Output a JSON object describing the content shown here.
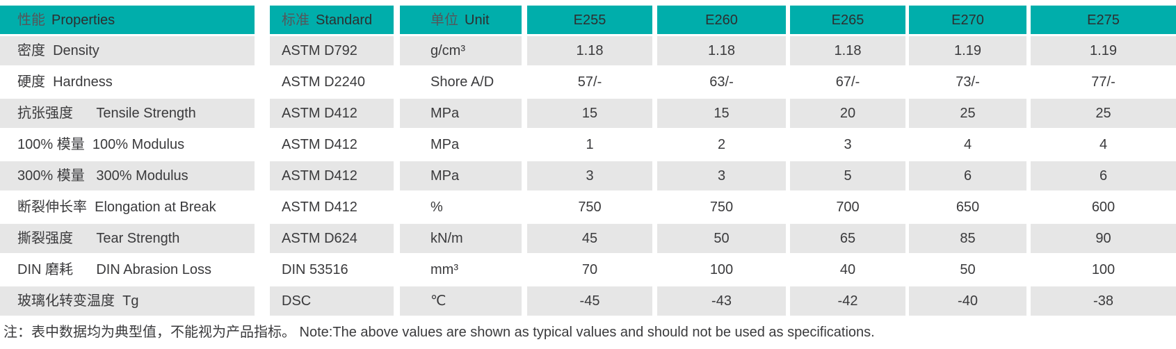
{
  "colors": {
    "header_teal": "#00aeab",
    "row_shade": "#e6e6e6",
    "body_text": "#3a3a3c",
    "header_text_zh": "#54565a",
    "header_text_en": "#2d2f30"
  },
  "table": {
    "header": {
      "properties_zh": "性能",
      "properties_en": "Properties",
      "standard_zh": "标准",
      "standard_en": "Standard",
      "unit_zh": "单位",
      "unit_en": "Unit",
      "grades": [
        "E255",
        "E260",
        "E265",
        "E270",
        "E275"
      ]
    },
    "rows": [
      {
        "property": "密度  Density",
        "standard": "ASTM D792",
        "unit": "g/cm³",
        "values": [
          "1.18",
          "1.18",
          "1.18",
          "1.19",
          "1.19"
        ]
      },
      {
        "property": "硬度  Hardness",
        "standard": "ASTM D2240",
        "unit": "Shore A/D",
        "values": [
          "57/-",
          "63/-",
          "67/-",
          "73/-",
          "77/-"
        ]
      },
      {
        "property": "抗张强度      Tensile Strength",
        "standard": "ASTM D412",
        "unit": "MPa",
        "values": [
          "15",
          "15",
          "20",
          "25",
          "25"
        ]
      },
      {
        "property": "100% 模量  100% Modulus",
        "standard": "ASTM D412",
        "unit": "MPa",
        "values": [
          "1",
          "2",
          "3",
          "4",
          "4"
        ]
      },
      {
        "property": "300% 模量   300% Modulus",
        "standard": "ASTM D412",
        "unit": "MPa",
        "values": [
          "3",
          "3",
          "5",
          "6",
          "6"
        ]
      },
      {
        "property": "断裂伸长率  Elongation at Break",
        "standard": "ASTM D412",
        "unit": "%",
        "values": [
          "750",
          "750",
          "700",
          "650",
          "600"
        ]
      },
      {
        "property": "撕裂强度      Tear Strength",
        "standard": "ASTM D624",
        "unit": "kN/m",
        "values": [
          "45",
          "50",
          "65",
          "85",
          "90"
        ]
      },
      {
        "property": "DIN 磨耗      DIN Abrasion Loss",
        "standard": "DIN 53516",
        "unit": "mm³",
        "values": [
          "70",
          "100",
          "40",
          "50",
          "100"
        ]
      },
      {
        "property": "玻璃化转变温度  Tg",
        "standard": "DSC",
        "unit": "℃",
        "values": [
          "-45",
          "-43",
          "-42",
          "-40",
          "-38"
        ]
      }
    ]
  },
  "note": "注：表中数据均为典型值，不能视为产品指标。 Note:The above values are shown as typical values and should not be used as specifications."
}
